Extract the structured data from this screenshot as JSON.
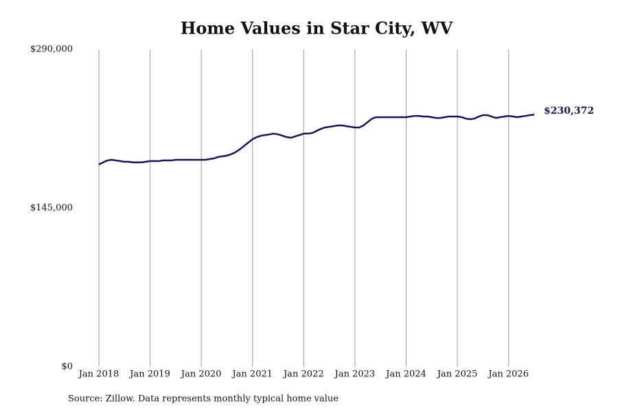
{
  "chart_data": {
    "type": "line",
    "title": "Home Values in Star City, WV",
    "source": "Source: Zillow. Data represents monthly typical home value",
    "x": [
      "2018-01",
      "2018-02",
      "2018-03",
      "2018-04",
      "2018-05",
      "2018-06",
      "2018-07",
      "2018-08",
      "2018-09",
      "2018-10",
      "2018-11",
      "2018-12",
      "2019-01",
      "2019-02",
      "2019-03",
      "2019-04",
      "2019-05",
      "2019-06",
      "2019-07",
      "2019-08",
      "2019-09",
      "2019-10",
      "2019-11",
      "2019-12",
      "2020-01",
      "2020-02",
      "2020-03",
      "2020-04",
      "2020-05",
      "2020-06",
      "2020-07",
      "2020-08",
      "2020-09",
      "2020-10",
      "2020-11",
      "2020-12",
      "2021-01",
      "2021-02",
      "2021-03",
      "2021-04",
      "2021-05",
      "2021-06",
      "2021-07",
      "2021-08",
      "2021-09",
      "2021-10",
      "2021-11",
      "2021-12",
      "2022-01",
      "2022-02",
      "2022-03",
      "2022-04",
      "2022-05",
      "2022-06",
      "2022-07",
      "2022-08",
      "2022-09",
      "2022-10",
      "2022-11",
      "2022-12",
      "2023-01",
      "2023-02",
      "2023-03",
      "2023-04",
      "2023-05",
      "2023-06",
      "2023-07",
      "2023-08",
      "2023-09",
      "2023-10",
      "2023-11",
      "2023-12",
      "2024-01",
      "2024-02",
      "2024-03",
      "2024-04",
      "2024-05",
      "2024-06",
      "2024-07",
      "2024-08",
      "2024-09",
      "2024-10",
      "2024-11",
      "2024-12",
      "2025-01",
      "2025-02",
      "2025-03",
      "2025-04",
      "2025-05",
      "2025-06",
      "2025-07",
      "2025-08",
      "2025-09",
      "2025-10",
      "2025-11",
      "2025-12",
      "2026-01",
      "2026-02",
      "2026-03",
      "2026-04",
      "2026-05",
      "2026-06",
      "2026-07"
    ],
    "series": [
      {
        "name": "Home value",
        "color": "#141458",
        "values": [
          184800,
          186700,
          188500,
          189100,
          188500,
          187900,
          187300,
          187300,
          186700,
          186700,
          186700,
          187300,
          187900,
          187900,
          187900,
          188500,
          188500,
          188500,
          189100,
          189100,
          189100,
          189100,
          189100,
          189100,
          189100,
          189100,
          189800,
          190400,
          191700,
          192300,
          192900,
          194200,
          196000,
          198600,
          201700,
          204800,
          207900,
          209800,
          211100,
          211700,
          212300,
          213000,
          212300,
          211100,
          209800,
          209200,
          210500,
          211700,
          213000,
          213000,
          213600,
          215500,
          217300,
          218600,
          219200,
          219800,
          220500,
          220500,
          219800,
          219200,
          218600,
          218600,
          220500,
          223600,
          226700,
          228000,
          228000,
          228000,
          228000,
          228000,
          228000,
          228000,
          228000,
          228600,
          229200,
          229200,
          228600,
          228600,
          228000,
          227300,
          227300,
          228000,
          228600,
          228600,
          228600,
          228000,
          226700,
          226100,
          226700,
          228600,
          229900,
          229900,
          228600,
          227300,
          228000,
          228600,
          229200,
          228600,
          228000,
          228600,
          229200,
          229900,
          230372
        ],
        "value_labels": [
          null,
          null,
          null,
          null,
          null,
          null,
          null,
          null,
          null,
          null,
          null,
          null,
          null,
          null,
          null,
          null,
          null,
          null,
          null,
          null,
          null,
          null,
          null,
          null,
          null,
          null,
          null,
          null,
          null,
          null,
          null,
          null,
          null,
          null,
          null,
          null,
          null,
          null,
          null,
          null,
          null,
          null,
          null,
          null,
          null,
          null,
          null,
          null,
          null,
          null,
          null,
          null,
          null,
          null,
          null,
          null,
          null,
          null,
          null,
          null,
          null,
          null,
          null,
          null,
          null,
          null,
          null,
          null,
          null,
          null,
          null,
          null,
          null,
          null,
          null,
          null,
          null,
          null,
          null,
          null,
          null,
          null,
          null,
          null,
          null,
          null,
          null,
          null,
          null,
          null,
          null,
          null,
          null,
          null,
          null,
          null,
          null,
          null,
          null,
          null,
          null,
          null,
          "$230,372"
        ]
      }
    ],
    "xlim": [
      "2018-01",
      "2026-07"
    ],
    "xticks": [
      {
        "value": "2018-01",
        "label": "Jan 2018"
      },
      {
        "value": "2019-01",
        "label": "Jan 2019"
      },
      {
        "value": "2020-01",
        "label": "Jan 2020"
      },
      {
        "value": "2021-01",
        "label": "Jan 2021"
      },
      {
        "value": "2022-01",
        "label": "Jan 2022"
      },
      {
        "value": "2023-01",
        "label": "Jan 2023"
      },
      {
        "value": "2024-01",
        "label": "Jan 2024"
      },
      {
        "value": "2025-01",
        "label": "Jan 2025"
      },
      {
        "value": "2026-01",
        "label": "Jan 2026"
      }
    ],
    "ylim": [
      0,
      290000
    ],
    "yticks": [
      {
        "value": 0,
        "label": "$0"
      },
      {
        "value": 145000,
        "label": "$145,000"
      },
      {
        "value": 290000,
        "label": "$290,000"
      }
    ],
    "grid": true
  }
}
